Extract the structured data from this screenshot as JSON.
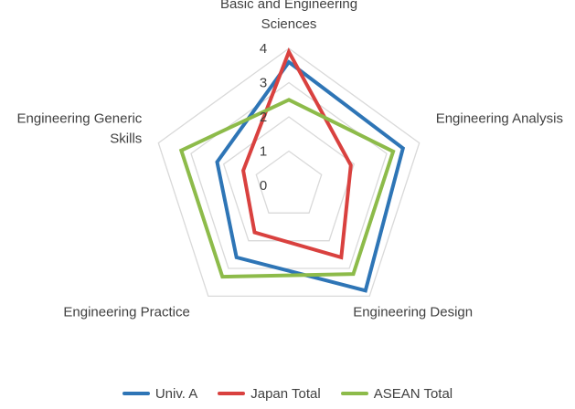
{
  "chart_data": {
    "type": "radar",
    "categories": [
      "Basic and Engineering Sciences",
      "Engineering Analysis",
      "Engineering Design",
      "Engineering Practice",
      "Engineering Generic Skills"
    ],
    "category_display": [
      [
        "Basic and Engineering",
        "Sciences"
      ],
      [
        "Engineering Analysis"
      ],
      [
        "Engineering Design"
      ],
      [
        "Engineering Practice"
      ],
      [
        "Engineering Generic",
        "Skills"
      ]
    ],
    "r_ticks": [
      "0",
      "1",
      "2",
      "3",
      "4"
    ],
    "rlim": [
      0,
      4
    ],
    "r_min": 0,
    "grid": true,
    "legend_position": "bottom",
    "series": [
      {
        "name": "Univ. A",
        "color": "#2e75b6",
        "values": [
          3.6,
          3.5,
          3.8,
          2.6,
          2.2
        ]
      },
      {
        "name": "Japan Total",
        "color": "#d9413f",
        "values": [
          3.9,
          1.9,
          2.6,
          1.7,
          1.4
        ]
      },
      {
        "name": "ASEAN Total",
        "color": "#8dbb4a",
        "values": [
          2.5,
          3.2,
          3.2,
          3.3,
          3.3
        ]
      }
    ]
  }
}
